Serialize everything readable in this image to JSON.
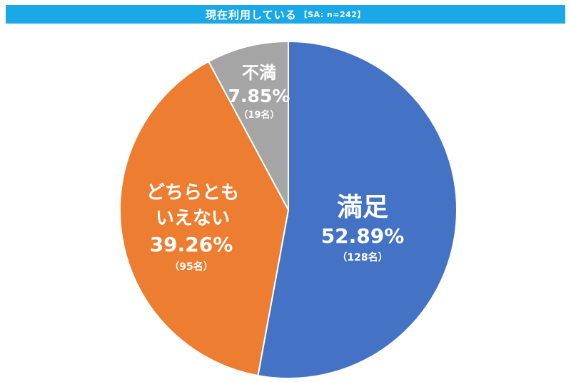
{
  "header": {
    "title": "現在利用している",
    "sample": "【SA: n=242】"
  },
  "colors": {
    "title_bar": "#1aa8e6",
    "satisfied": "#4472c4",
    "neutral": "#ed7d31",
    "dissatisfied": "#a5a5a5"
  },
  "chart_data": {
    "type": "pie",
    "title": "現在利用している",
    "subtitle": "【SA: n=242】",
    "slices": [
      {
        "name": "満足",
        "label_lines": [
          "満足"
        ],
        "percent": 52.89,
        "percent_label": "52.89%",
        "count_label": "（128名）",
        "color": "#4472c4"
      },
      {
        "name": "どちらともいえない",
        "label_lines": [
          "どちらとも",
          "いえない"
        ],
        "percent": 39.26,
        "percent_label": "39.26%",
        "count_label": "（95名）",
        "color": "#ed7d31"
      },
      {
        "name": "不満",
        "label_lines": [
          "不満"
        ],
        "percent": 7.85,
        "percent_label": "7.85%",
        "count_label": "（19名）",
        "color": "#a5a5a5"
      }
    ],
    "start": "12 o'clock",
    "direction": "clockwise"
  }
}
